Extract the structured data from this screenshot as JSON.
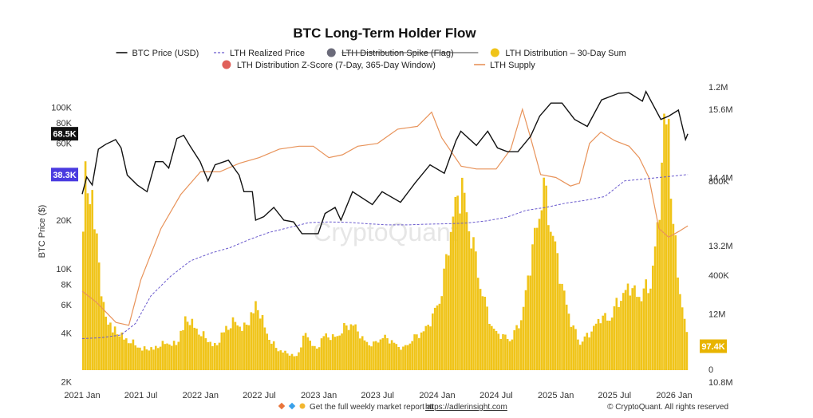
{
  "chart_data": {
    "type": "line",
    "title": "BTC Long-Term Holder Flow",
    "ylabel": "BTC Price ($)",
    "y_scale": "log",
    "ylim": [
      2000,
      200000
    ],
    "x_ticks": [
      "2021 Jan",
      "2021 Jul",
      "2022 Jan",
      "2022 Jul",
      "2023 Jan",
      "2023 Jul",
      "2024 Jan",
      "2024 Jul",
      "2025 Jan",
      "2025 Jul",
      "2026 Jan"
    ],
    "y_left_ticks": [
      "100K",
      "80K",
      "60K",
      "40K",
      "20K",
      "10K",
      "8K",
      "6K",
      "4K",
      "2K"
    ],
    "y_right_supply_ticks": [
      "15.6M",
      "14.4M",
      "13.2M",
      "12M",
      "10.8M"
    ],
    "y_right_distribution_ticks": [
      "1.2M",
      "800K",
      "400K",
      "0"
    ],
    "legend": [
      {
        "name": "BTC Price (USD)",
        "color": "#111111",
        "style": "solid"
      },
      {
        "name": "LTH Realized Price",
        "color": "#6a5acd",
        "style": "dashed"
      },
      {
        "name": "LTH Distribution Spike (Flag)",
        "color": "#6b6b7a",
        "style": "dot",
        "struck": true
      },
      {
        "name": "LTH Distribution – 30-Day Sum",
        "color": "#f0c419",
        "style": "dot"
      },
      {
        "name": "LTH Distribution Z-Score (7-Day, 365-Day Window)",
        "color": "#e0605a",
        "style": "dot"
      },
      {
        "name": "LTH Supply",
        "color": "#e8935a",
        "style": "solid"
      }
    ],
    "badges": {
      "price_current": "68.5K",
      "realized_current": "38.3K",
      "distribution_current": "97.4K"
    },
    "series": [
      {
        "name": "BTC Price (USD)",
        "color": "#111111",
        "points": [
          [
            "2021-01-01",
            29000
          ],
          [
            "2021-01-15",
            37000
          ],
          [
            "2021-02-01",
            33000
          ],
          [
            "2021-02-20",
            55000
          ],
          [
            "2021-03-15",
            59000
          ],
          [
            "2021-04-14",
            63000
          ],
          [
            "2021-05-01",
            56000
          ],
          [
            "2021-05-20",
            38000
          ],
          [
            "2021-06-20",
            33000
          ],
          [
            "2021-07-20",
            30000
          ],
          [
            "2021-08-15",
            46000
          ],
          [
            "2021-09-07",
            46000
          ],
          [
            "2021-09-25",
            42000
          ],
          [
            "2021-10-20",
            64000
          ],
          [
            "2021-11-10",
            67000
          ],
          [
            "2021-12-01",
            57000
          ],
          [
            "2021-12-31",
            46000
          ],
          [
            "2022-01-24",
            35000
          ],
          [
            "2022-02-15",
            44000
          ],
          [
            "2022-03-28",
            47000
          ],
          [
            "2022-04-30",
            38000
          ],
          [
            "2022-05-15",
            30000
          ],
          [
            "2022-06-10",
            30000
          ],
          [
            "2022-06-20",
            20000
          ],
          [
            "2022-07-15",
            21000
          ],
          [
            "2022-08-15",
            24000
          ],
          [
            "2022-09-15",
            20000
          ],
          [
            "2022-10-15",
            19500
          ],
          [
            "2022-11-10",
            16500
          ],
          [
            "2022-12-30",
            16500
          ],
          [
            "2023-01-20",
            22000
          ],
          [
            "2023-02-20",
            24000
          ],
          [
            "2023-03-10",
            20000
          ],
          [
            "2023-04-15",
            30000
          ],
          [
            "2023-06-15",
            25000
          ],
          [
            "2023-07-15",
            30000
          ],
          [
            "2023-09-10",
            25800
          ],
          [
            "2023-10-25",
            34000
          ],
          [
            "2023-12-10",
            44000
          ],
          [
            "2024-01-23",
            39000
          ],
          [
            "2024-02-28",
            62000
          ],
          [
            "2024-03-14",
            71000
          ],
          [
            "2024-05-01",
            58000
          ],
          [
            "2024-06-05",
            71000
          ],
          [
            "2024-07-05",
            56000
          ],
          [
            "2024-08-05",
            53000
          ],
          [
            "2024-09-06",
            53000
          ],
          [
            "2024-10-15",
            66000
          ],
          [
            "2024-11-12",
            88000
          ],
          [
            "2024-12-17",
            106000
          ],
          [
            "2025-01-20",
            106000
          ],
          [
            "2025-02-28",
            84000
          ],
          [
            "2025-04-08",
            76000
          ],
          [
            "2025-05-22",
            111000
          ],
          [
            "2025-07-14",
            122000
          ],
          [
            "2025-08-14",
            123000
          ],
          [
            "2025-09-25",
            109000
          ],
          [
            "2025-10-06",
            125000
          ],
          [
            "2025-11-21",
            84000
          ],
          [
            "2025-12-15",
            88000
          ],
          [
            "2026-01-14",
            96000
          ],
          [
            "2026-02-05",
            63000
          ],
          [
            "2026-02-12",
            68500
          ]
        ]
      },
      {
        "name": "LTH Realized Price",
        "color": "#6a5acd",
        "points": [
          [
            "2021-01-01",
            3700
          ],
          [
            "2021-03-01",
            3750
          ],
          [
            "2021-05-01",
            3900
          ],
          [
            "2021-06-15",
            4600
          ],
          [
            "2021-08-01",
            6800
          ],
          [
            "2021-10-01",
            9000
          ],
          [
            "2021-12-01",
            11200
          ],
          [
            "2022-02-01",
            12500
          ],
          [
            "2022-04-01",
            13500
          ],
          [
            "2022-06-01",
            15200
          ],
          [
            "2022-08-01",
            16800
          ],
          [
            "2022-10-01",
            18000
          ],
          [
            "2022-12-01",
            19300
          ],
          [
            "2023-02-01",
            19500
          ],
          [
            "2023-04-01",
            19400
          ],
          [
            "2023-06-01",
            19000
          ],
          [
            "2023-08-01",
            18700
          ],
          [
            "2023-10-01",
            18700
          ],
          [
            "2023-12-01",
            18900
          ],
          [
            "2024-02-01",
            19000
          ],
          [
            "2024-04-01",
            19200
          ],
          [
            "2024-06-01",
            19800
          ],
          [
            "2024-08-01",
            20800
          ],
          [
            "2024-10-01",
            23000
          ],
          [
            "2024-12-01",
            24000
          ],
          [
            "2025-02-01",
            25500
          ],
          [
            "2025-04-01",
            26500
          ],
          [
            "2025-06-01",
            28000
          ],
          [
            "2025-08-01",
            35000
          ],
          [
            "2025-10-01",
            36000
          ],
          [
            "2025-12-01",
            37000
          ],
          [
            "2026-02-12",
            38300
          ]
        ]
      }
    ],
    "lth_supply": {
      "name": "LTH Supply",
      "color": "#e8935a",
      "unit": "BTC",
      "points": [
        [
          "2021-01-01",
          12.4
        ],
        [
          "2021-02-15",
          12.2
        ],
        [
          "2021-04-15",
          11.85
        ],
        [
          "2021-05-25",
          11.8
        ],
        [
          "2021-07-01",
          12.6
        ],
        [
          "2021-09-01",
          13.5
        ],
        [
          "2021-11-01",
          14.1
        ],
        [
          "2022-01-01",
          14.5
        ],
        [
          "2022-03-01",
          14.5
        ],
        [
          "2022-05-01",
          14.65
        ],
        [
          "2022-07-01",
          14.75
        ],
        [
          "2022-09-01",
          14.9
        ],
        [
          "2022-11-01",
          14.95
        ],
        [
          "2022-12-15",
          14.95
        ],
        [
          "2023-02-01",
          14.75
        ],
        [
          "2023-03-15",
          14.8
        ],
        [
          "2023-05-01",
          14.95
        ],
        [
          "2023-07-01",
          15.0
        ],
        [
          "2023-09-01",
          15.25
        ],
        [
          "2023-11-01",
          15.3
        ],
        [
          "2023-12-15",
          15.55
        ],
        [
          "2024-01-15",
          15.1
        ],
        [
          "2024-03-15",
          14.6
        ],
        [
          "2024-05-01",
          14.55
        ],
        [
          "2024-07-01",
          14.55
        ],
        [
          "2024-08-15",
          14.9
        ],
        [
          "2024-09-20",
          15.6
        ],
        [
          "2024-10-15",
          15.1
        ],
        [
          "2024-11-15",
          14.45
        ],
        [
          "2025-01-01",
          14.4
        ],
        [
          "2025-02-15",
          14.25
        ],
        [
          "2025-03-15",
          14.3
        ],
        [
          "2025-04-15",
          15.0
        ],
        [
          "2025-05-20",
          15.2
        ],
        [
          "2025-07-01",
          15.05
        ],
        [
          "2025-08-15",
          14.95
        ],
        [
          "2025-09-15",
          14.75
        ],
        [
          "2025-10-15",
          14.4
        ],
        [
          "2025-11-15",
          13.5
        ],
        [
          "2025-12-15",
          13.35
        ],
        [
          "2026-01-15",
          13.45
        ],
        [
          "2026-02-12",
          13.55
        ]
      ]
    },
    "lth_distribution_30d": {
      "name": "LTH Distribution – 30-Day Sum",
      "color": "#f0c419",
      "unit": "BTC",
      "points": [
        [
          "2021-01-01",
          750000
        ],
        [
          "2021-01-10",
          1000000
        ],
        [
          "2021-01-25",
          800000
        ],
        [
          "2021-02-15",
          650000
        ],
        [
          "2021-03-01",
          300000
        ],
        [
          "2021-04-01",
          200000
        ],
        [
          "2021-05-01",
          160000
        ],
        [
          "2021-06-01",
          130000
        ],
        [
          "2021-07-01",
          100000
        ],
        [
          "2021-08-01",
          100000
        ],
        [
          "2021-09-15",
          130000
        ],
        [
          "2021-10-15",
          120000
        ],
        [
          "2021-11-15",
          250000
        ],
        [
          "2021-12-15",
          200000
        ],
        [
          "2022-01-15",
          150000
        ],
        [
          "2022-02-15",
          110000
        ],
        [
          "2022-03-15",
          200000
        ],
        [
          "2022-04-15",
          230000
        ],
        [
          "2022-05-15",
          200000
        ],
        [
          "2022-06-20",
          320000
        ],
        [
          "2022-07-20",
          180000
        ],
        [
          "2022-08-20",
          100000
        ],
        [
          "2022-09-20",
          80000
        ],
        [
          "2022-10-20",
          60000
        ],
        [
          "2022-11-20",
          180000
        ],
        [
          "2022-12-20",
          90000
        ],
        [
          "2023-01-15",
          170000
        ],
        [
          "2023-02-15",
          150000
        ],
        [
          "2023-03-15",
          200000
        ],
        [
          "2023-04-15",
          220000
        ],
        [
          "2023-05-15",
          140000
        ],
        [
          "2023-06-15",
          120000
        ],
        [
          "2023-07-15",
          160000
        ],
        [
          "2023-08-15",
          130000
        ],
        [
          "2023-09-15",
          100000
        ],
        [
          "2023-10-15",
          150000
        ],
        [
          "2023-11-15",
          180000
        ],
        [
          "2023-12-15",
          250000
        ],
        [
          "2024-01-15",
          400000
        ],
        [
          "2024-02-15",
          750000
        ],
        [
          "2024-03-15",
          880000
        ],
        [
          "2024-04-15",
          620000
        ],
        [
          "2024-05-15",
          380000
        ],
        [
          "2024-06-15",
          200000
        ],
        [
          "2024-07-15",
          160000
        ],
        [
          "2024-08-15",
          150000
        ],
        [
          "2024-09-15",
          250000
        ],
        [
          "2024-10-15",
          550000
        ],
        [
          "2024-11-20",
          880000
        ],
        [
          "2024-12-15",
          700000
        ],
        [
          "2025-01-15",
          420000
        ],
        [
          "2025-02-15",
          220000
        ],
        [
          "2025-03-15",
          130000
        ],
        [
          "2025-04-15",
          180000
        ],
        [
          "2025-05-15",
          250000
        ],
        [
          "2025-06-15",
          250000
        ],
        [
          "2025-07-15",
          350000
        ],
        [
          "2025-08-15",
          400000
        ],
        [
          "2025-09-15",
          350000
        ],
        [
          "2025-10-15",
          420000
        ],
        [
          "2025-11-10",
          680000
        ],
        [
          "2025-11-25",
          1150000
        ],
        [
          "2025-12-10",
          1250000
        ],
        [
          "2025-12-25",
          700000
        ],
        [
          "2026-01-15",
          400000
        ],
        [
          "2026-02-12",
          97400
        ]
      ]
    }
  },
  "footer": {
    "report_text": "Get the full weekly market report at",
    "report_link": "https://adlerinsight.com",
    "copyright": "© CryptoQuant. All rights reserved"
  },
  "watermark": "CryptoQuant"
}
